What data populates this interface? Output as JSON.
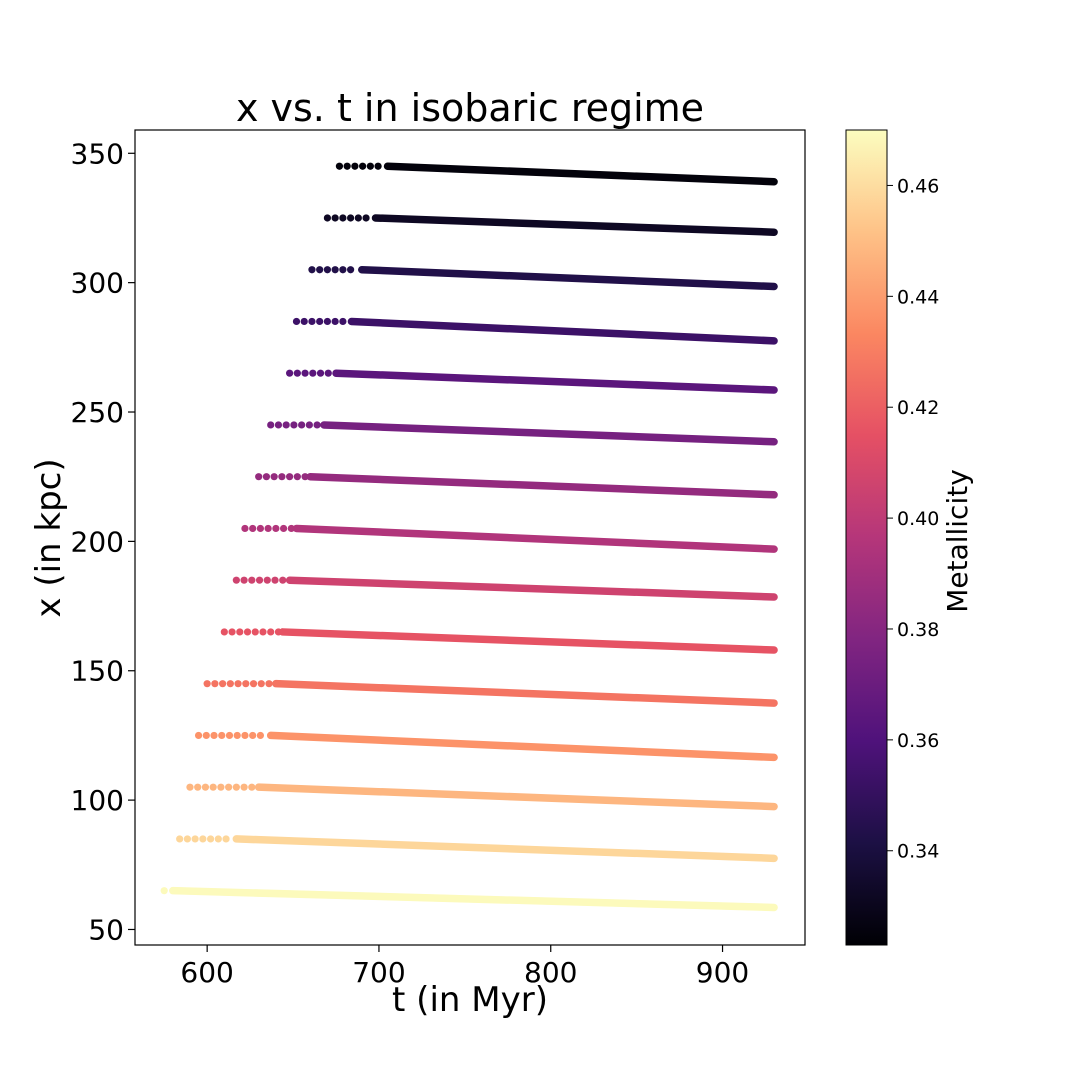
{
  "chart_data": {
    "type": "scatter",
    "title": "x vs. t in isobaric regime",
    "xlabel": "t (in Myr)",
    "ylabel": "x (in kpc)",
    "xlim": [
      558,
      948
    ],
    "ylim": [
      44,
      359
    ],
    "xticks": [
      600,
      700,
      800,
      900
    ],
    "yticks": [
      50,
      100,
      150,
      200,
      250,
      300,
      350
    ],
    "grid": false,
    "colorbar": {
      "label": "Metallicity",
      "colormap": "magma",
      "range": [
        0.323,
        0.47
      ],
      "ticks": [
        0.34,
        0.36,
        0.38,
        0.4,
        0.42,
        0.44,
        0.46
      ],
      "tick_labels": [
        "0.34",
        "0.36",
        "0.38",
        "0.40",
        "0.42",
        "0.44",
        "0.46"
      ]
    },
    "series": [
      {
        "metallicity": 0.469,
        "x_start": 65,
        "t_start": 575,
        "t_solid": 580,
        "x_end": 58.5,
        "t_end": 930
      },
      {
        "metallicity": 0.458,
        "x_start": 85,
        "t_start": 584,
        "t_solid": 617,
        "x_end": 77.5,
        "t_end": 930
      },
      {
        "metallicity": 0.448,
        "x_start": 105,
        "t_start": 590,
        "t_solid": 630,
        "x_end": 97.5,
        "t_end": 930
      },
      {
        "metallicity": 0.437,
        "x_start": 125,
        "t_start": 595,
        "t_solid": 637,
        "x_end": 116.5,
        "t_end": 930
      },
      {
        "metallicity": 0.427,
        "x_start": 145,
        "t_start": 600,
        "t_solid": 640,
        "x_end": 137.5,
        "t_end": 930
      },
      {
        "metallicity": 0.416,
        "x_start": 165,
        "t_start": 610,
        "t_solid": 644,
        "x_end": 158,
        "t_end": 930
      },
      {
        "metallicity": 0.406,
        "x_start": 185,
        "t_start": 617,
        "t_solid": 648,
        "x_end": 178.5,
        "t_end": 930
      },
      {
        "metallicity": 0.395,
        "x_start": 205,
        "t_start": 622,
        "t_solid": 652,
        "x_end": 197,
        "t_end": 930
      },
      {
        "metallicity": 0.385,
        "x_start": 225,
        "t_start": 630,
        "t_solid": 660,
        "x_end": 218,
        "t_end": 930
      },
      {
        "metallicity": 0.374,
        "x_start": 245,
        "t_start": 637,
        "t_solid": 668,
        "x_end": 238.5,
        "t_end": 930
      },
      {
        "metallicity": 0.364,
        "x_start": 265,
        "t_start": 648,
        "t_solid": 675,
        "x_end": 258.5,
        "t_end": 930
      },
      {
        "metallicity": 0.353,
        "x_start": 285,
        "t_start": 652,
        "t_solid": 684,
        "x_end": 277.5,
        "t_end": 930
      },
      {
        "metallicity": 0.343,
        "x_start": 305,
        "t_start": 661,
        "t_solid": 690,
        "x_end": 298.5,
        "t_end": 930
      },
      {
        "metallicity": 0.332,
        "x_start": 325,
        "t_start": 670,
        "t_solid": 698,
        "x_end": 319.5,
        "t_end": 930
      },
      {
        "metallicity": 0.325,
        "x_start": 345,
        "t_start": 677,
        "t_solid": 705,
        "x_end": 339,
        "t_end": 930
      }
    ]
  }
}
